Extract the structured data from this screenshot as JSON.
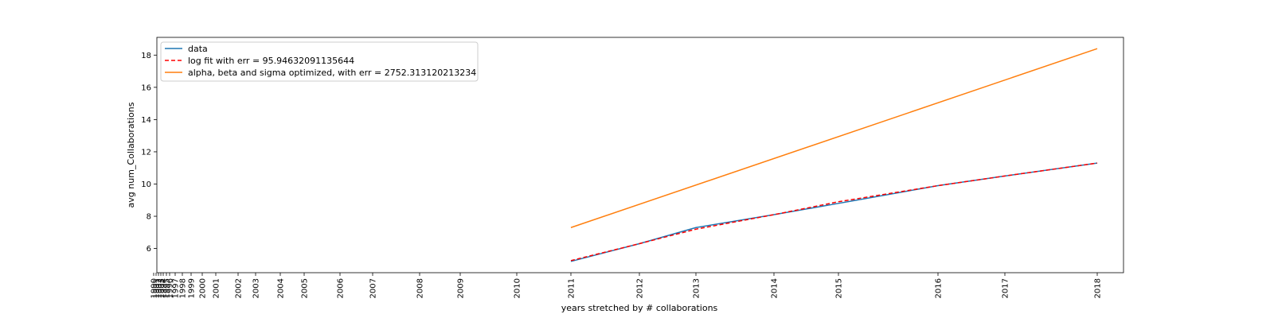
{
  "chart_data": {
    "type": "line",
    "title": "",
    "xlabel": "years stretched by # collaborations",
    "ylabel": "avg num_Collaborations",
    "ylim": [
      4.5,
      19.1
    ],
    "yticks": [
      6,
      8,
      10,
      12,
      14,
      16,
      18
    ],
    "x_axis": {
      "note": "x axis is a stretched (non-linear) year axis; tick labels are years",
      "ticks": [
        1990,
        1991,
        1992,
        1993,
        1994,
        1995,
        1996,
        1997,
        1998,
        1999,
        2000,
        2001,
        2002,
        2003,
        2004,
        2005,
        2006,
        2007,
        2008,
        2009,
        2010,
        2011,
        2012,
        2013,
        2014,
        2015,
        2016,
        2017,
        2018
      ]
    },
    "legend": {
      "placement": "upper-left",
      "entries": [
        "data",
        "log fit with err = 95.94632091135644",
        "alpha, beta and sigma optimized, with err = 2752.313120213234"
      ]
    },
    "series": [
      {
        "name": "data",
        "color": "#1f77b4",
        "style": "solid",
        "x": [
          2011,
          2012,
          2013,
          2014,
          2015,
          2016,
          2017,
          2018
        ],
        "values": [
          5.2,
          6.3,
          7.3,
          8.1,
          8.8,
          9.9,
          10.5,
          11.3
        ]
      },
      {
        "name": "log fit with err = 95.94632091135644",
        "color": "#ff0000",
        "style": "dashed",
        "x": [
          2011,
          2012,
          2013,
          2014,
          2015,
          2016,
          2017,
          2018
        ],
        "values": [
          5.25,
          6.3,
          7.2,
          8.1,
          8.9,
          9.9,
          10.5,
          11.3
        ]
      },
      {
        "name": "alpha, beta and sigma optimized, with err = 2752.313120213234",
        "color": "#ff7f0e",
        "style": "solid",
        "x": [
          2011,
          2018
        ],
        "values": [
          7.3,
          18.4
        ]
      }
    ]
  }
}
